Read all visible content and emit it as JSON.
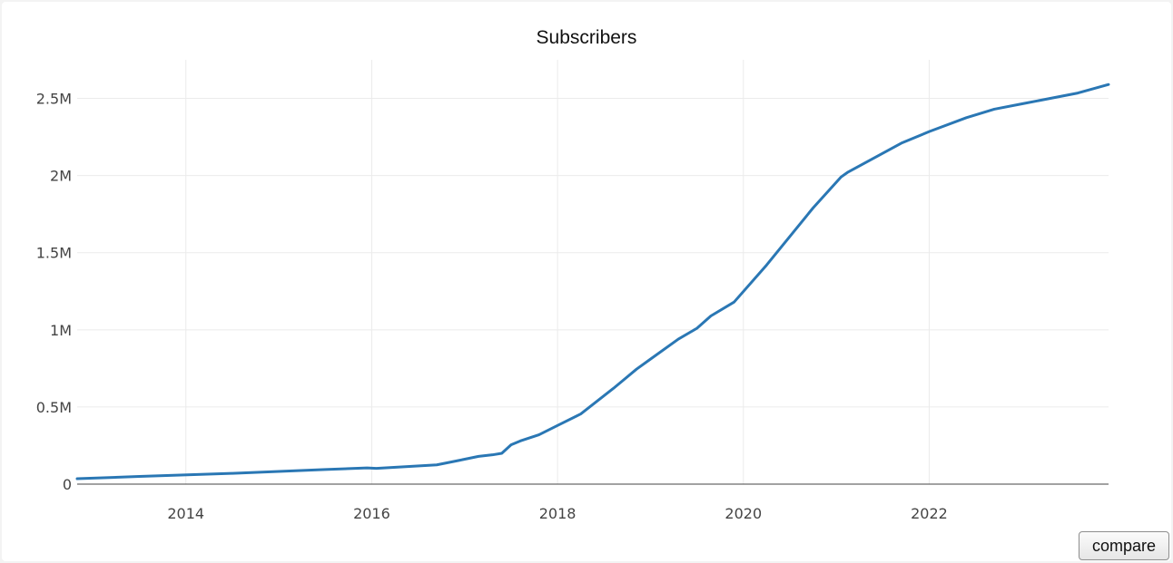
{
  "chart_data": {
    "type": "line",
    "title": "Subscribers",
    "xlabel": "",
    "ylabel": "",
    "x_ticks": [
      {
        "value": 2014,
        "label": "2014"
      },
      {
        "value": 2016,
        "label": "2016"
      },
      {
        "value": 2018,
        "label": "2018"
      },
      {
        "value": 2020,
        "label": "2020"
      },
      {
        "value": 2022,
        "label": "2022"
      }
    ],
    "y_ticks": [
      {
        "value": 0,
        "label": "0"
      },
      {
        "value": 500000,
        "label": "0.5M"
      },
      {
        "value": 1000000,
        "label": "1M"
      },
      {
        "value": 1500000,
        "label": "1.5M"
      },
      {
        "value": 2000000,
        "label": "2M"
      },
      {
        "value": 2500000,
        "label": "2.5M"
      }
    ],
    "xlim": [
      2012.83,
      2023.93
    ],
    "ylim": [
      0,
      2750000
    ],
    "grid": true,
    "line_color": "#2a77b4",
    "series": [
      {
        "x": [
          2012.83,
          2013.5,
          2014.5,
          2015.5,
          2015.95,
          2016.05,
          2016.7,
          2016.95,
          2017.15,
          2017.3,
          2017.4,
          2017.5,
          2017.6,
          2017.8,
          2018.0,
          2018.25,
          2018.6,
          2018.7,
          2018.85,
          2019.0,
          2019.3,
          2019.5,
          2019.65,
          2019.9,
          2020.25,
          2020.75,
          2021.05,
          2021.12,
          2021.7,
          2022.0,
          2022.4,
          2022.7,
          2023.0,
          2023.6,
          2023.75,
          2023.93
        ],
        "y": [
          35000,
          50000,
          70000,
          95000,
          105000,
          102000,
          125000,
          155000,
          180000,
          190000,
          200000,
          255000,
          280000,
          320000,
          380000,
          455000,
          620000,
          670000,
          745000,
          810000,
          940000,
          1010000,
          1090000,
          1180000,
          1420000,
          1790000,
          1990000,
          2020000,
          2210000,
          2285000,
          2375000,
          2430000,
          2465000,
          2535000,
          2560000,
          2590000
        ]
      }
    ]
  },
  "controls": {
    "compare_label": "compare"
  }
}
